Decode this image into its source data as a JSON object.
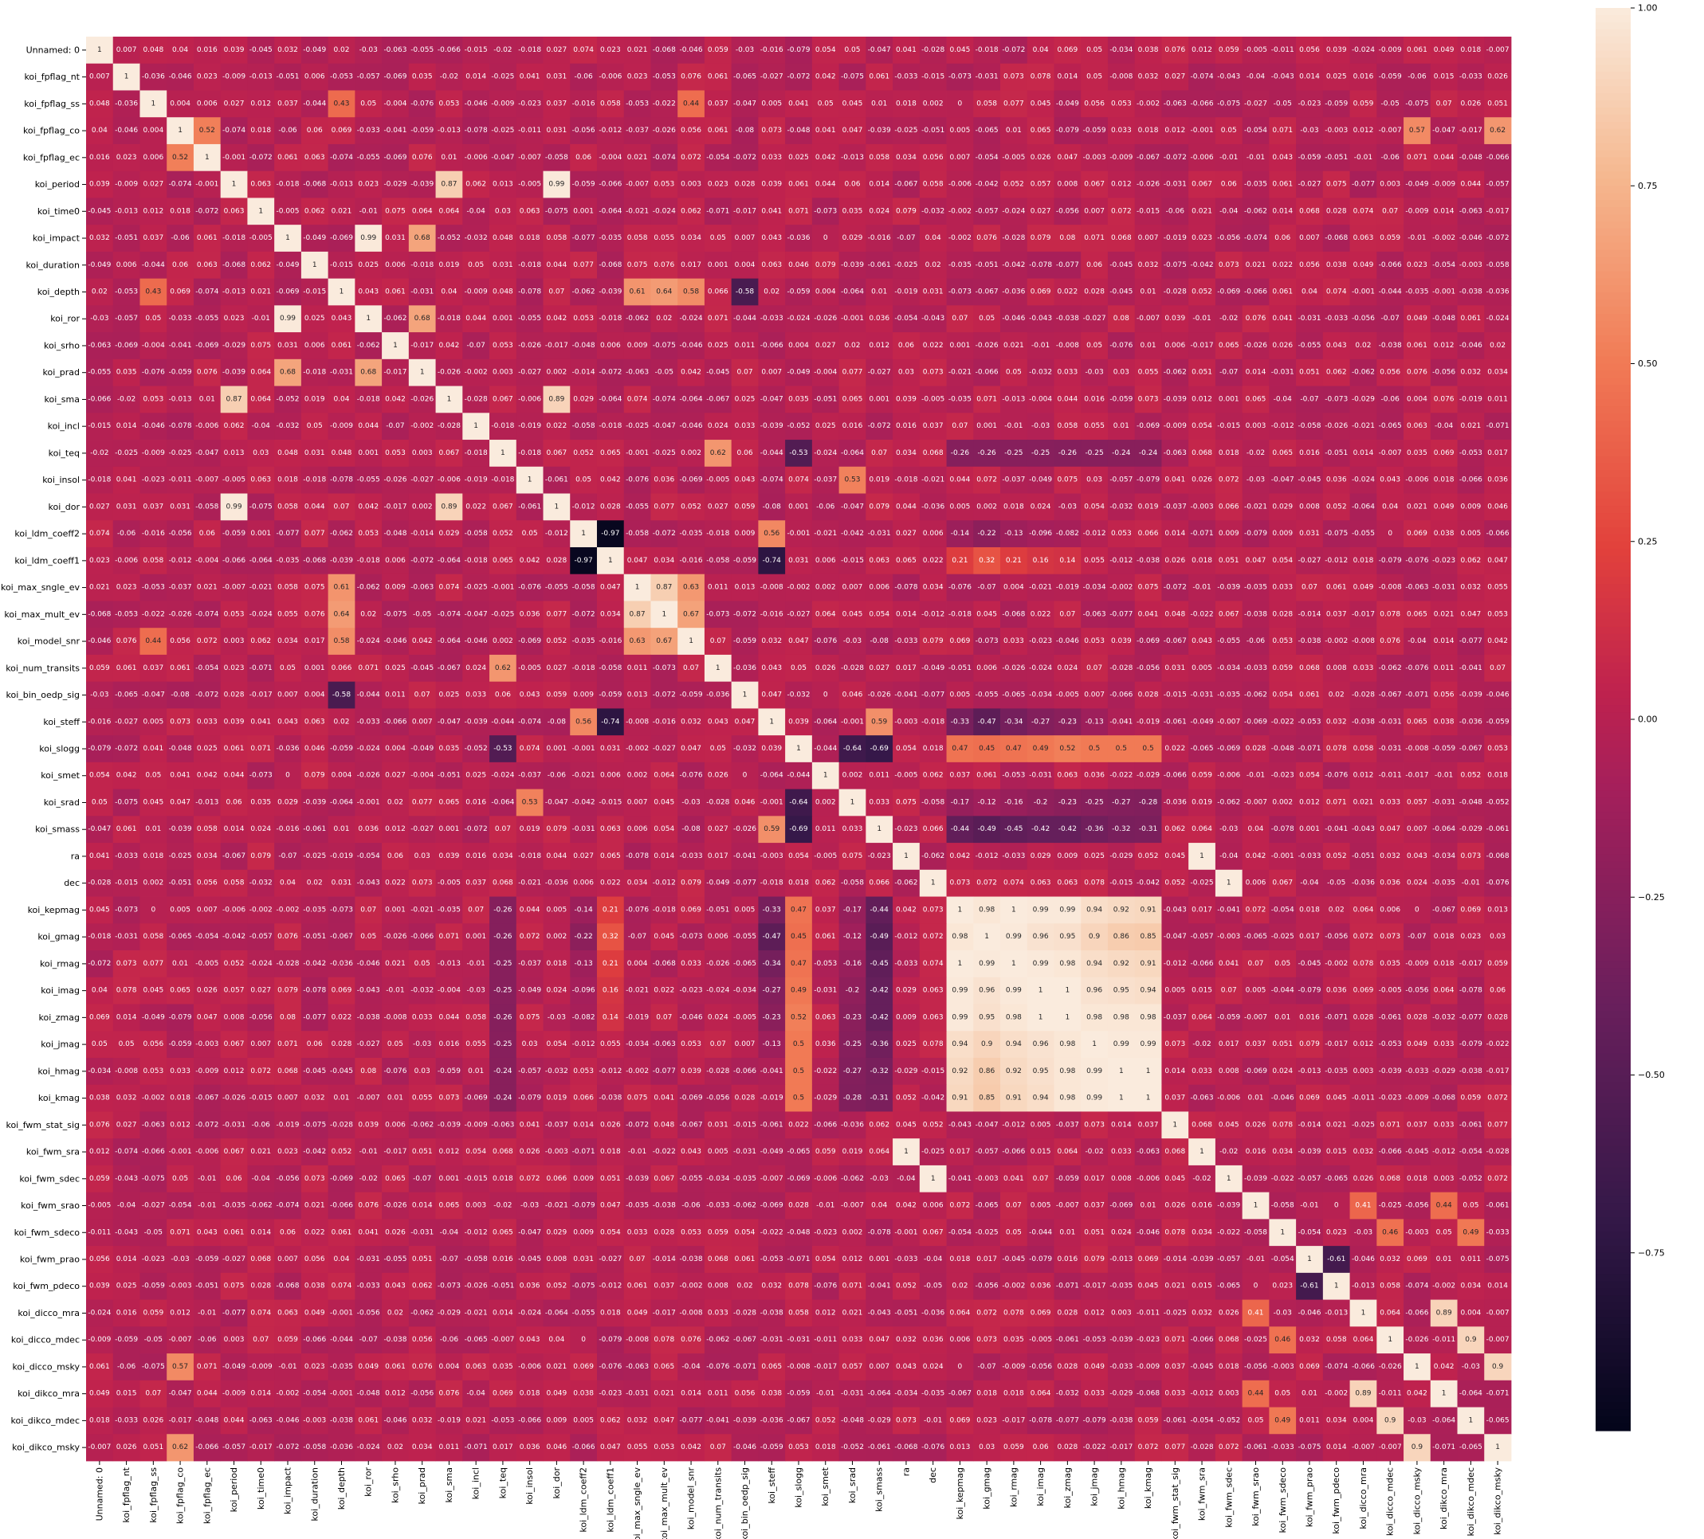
{
  "chart_data": {
    "type": "heatmap",
    "title": "",
    "xlabel": "",
    "ylabel": "",
    "colormap": "rocket",
    "vmin": -1,
    "vmax": 1,
    "colorbar": {
      "ticks": [
        1.0,
        0.75,
        0.5,
        0.25,
        0.0,
        -0.25,
        -0.5,
        -0.75
      ],
      "tick_labels": [
        "1.00",
        "0.75",
        "0.50",
        "0.25",
        "0.00",
        "−0.25",
        "−0.50",
        "−0.75"
      ]
    },
    "labels": [
      "Unnamed: 0",
      "koi_fpflag_nt",
      "koi_fpflag_ss",
      "koi_fpflag_co",
      "koi_fpflag_ec",
      "koi_period",
      "koi_time0",
      "koi_impact",
      "koi_duration",
      "koi_depth",
      "koi_ror",
      "koi_srho",
      "koi_prad",
      "koi_sma",
      "koi_incl",
      "koi_teq",
      "koi_insol",
      "koi_dor",
      "koi_ldm_coeff2",
      "koi_ldm_coeff1",
      "koi_max_sngle_ev",
      "koi_max_mult_ev",
      "koi_model_snr",
      "koi_num_transits",
      "koi_bin_oedp_sig",
      "koi_steff",
      "koi_slogg",
      "koi_smet",
      "koi_srad",
      "koi_smass",
      "ra",
      "dec",
      "koi_kepmag",
      "koi_gmag",
      "koi_rmag",
      "koi_imag",
      "koi_zmag",
      "koi_jmag",
      "koi_hmag",
      "koi_kmag",
      "koi_fwm_stat_sig",
      "koi_fwm_sra",
      "koi_fwm_sdec",
      "koi_fwm_srao",
      "koi_fwm_sdeco",
      "koi_fwm_prao",
      "koi_fwm_pdeco",
      "koi_dicco_mra",
      "koi_dicco_mdec",
      "koi_dicco_msky",
      "koi_dikco_mra",
      "koi_dikco_mdec",
      "koi_dikco_msky"
    ],
    "highlighted_correlations": [
      {
        "a": "koi_period",
        "b": "koi_dor",
        "value": 0.99
      },
      {
        "a": "koi_period",
        "b": "koi_sma",
        "value": 0.87
      },
      {
        "a": "koi_sma",
        "b": "koi_dor",
        "value": 0.89
      },
      {
        "a": "koi_impact",
        "b": "koi_ror",
        "value": 0.99
      },
      {
        "a": "koi_impact",
        "b": "koi_prad",
        "value": 0.68
      },
      {
        "a": "koi_ror",
        "b": "koi_prad",
        "value": 0.68
      },
      {
        "a": "koi_fpflag_co",
        "b": "koi_fpflag_ec",
        "value": 0.52
      },
      {
        "a": "koi_fpflag_co",
        "b": "koi_dicco_msky",
        "value": 0.57
      },
      {
        "a": "koi_fpflag_co",
        "b": "koi_dikco_msky",
        "value": 0.62
      },
      {
        "a": "koi_fpflag_ss",
        "b": "koi_depth",
        "value": 0.43
      },
      {
        "a": "koi_fpflag_ss",
        "b": "koi_model_snr",
        "value": 0.44
      },
      {
        "a": "koi_depth",
        "b": "koi_max_sngle_ev",
        "value": 0.61
      },
      {
        "a": "koi_depth",
        "b": "koi_max_mult_ev",
        "value": 0.64
      },
      {
        "a": "koi_depth",
        "b": "koi_model_snr",
        "value": 0.58
      },
      {
        "a": "koi_depth",
        "b": "koi_bin_oedp_sig",
        "value": -0.58
      },
      {
        "a": "koi_max_sngle_ev",
        "b": "koi_max_mult_ev",
        "value": 0.87
      },
      {
        "a": "koi_max_sngle_ev",
        "b": "koi_model_snr",
        "value": 0.63
      },
      {
        "a": "koi_max_mult_ev",
        "b": "koi_model_snr",
        "value": 0.67
      },
      {
        "a": "koi_teq",
        "b": "koi_num_transits",
        "value": 0.62
      },
      {
        "a": "koi_teq",
        "b": "koi_slogg",
        "value": -0.53
      },
      {
        "a": "koi_insol",
        "b": "koi_srad",
        "value": 0.53
      },
      {
        "a": "koi_ldm_coeff2",
        "b": "koi_ldm_coeff1",
        "value": -0.97
      },
      {
        "a": "koi_ldm_coeff2",
        "b": "koi_steff",
        "value": 0.56
      },
      {
        "a": "koi_ldm_coeff1",
        "b": "koi_steff",
        "value": -0.74
      },
      {
        "a": "koi_steff",
        "b": "koi_smass",
        "value": 0.59
      },
      {
        "a": "koi_slogg",
        "b": "koi_srad",
        "value": -0.64
      },
      {
        "a": "koi_slogg",
        "b": "koi_smass",
        "value": -0.69
      },
      {
        "a": "ra",
        "b": "koi_fwm_sra",
        "value": 1
      },
      {
        "a": "dec",
        "b": "koi_fwm_sdec",
        "value": 1
      },
      {
        "a": "koi_fwm_srao",
        "b": "koi_dicco_mra",
        "value": 0.41
      },
      {
        "a": "koi_fwm_srao",
        "b": "koi_dikco_mra",
        "value": 0.44
      },
      {
        "a": "koi_fwm_sdeco",
        "b": "koi_dicco_mdec",
        "value": 0.46
      },
      {
        "a": "koi_fwm_sdeco",
        "b": "koi_dikco_mdec",
        "value": 0.49
      },
      {
        "a": "koi_fwm_prao",
        "b": "koi_fwm_pdeco",
        "value": -0.61
      },
      {
        "a": "koi_dicco_mra",
        "b": "koi_dikco_mra",
        "value": 0.89
      },
      {
        "a": "koi_dicco_mdec",
        "b": "koi_dikco_mdec",
        "value": 0.9
      },
      {
        "a": "koi_dicco_msky",
        "b": "koi_dikco_msky",
        "value": 0.9
      }
    ],
    "magnitude_block": {
      "labels": [
        "koi_kepmag",
        "koi_gmag",
        "koi_rmag",
        "koi_imag",
        "koi_zmag",
        "koi_jmag",
        "koi_hmag",
        "koi_kmag"
      ],
      "matrix": [
        [
          1,
          0.98,
          1,
          0.99,
          0.99,
          0.94,
          0.92,
          0.91
        ],
        [
          0.98,
          1,
          0.99,
          0.96,
          0.95,
          0.9,
          0.86,
          0.85
        ],
        [
          1,
          0.99,
          1,
          0.99,
          0.98,
          0.94,
          0.92,
          0.91
        ],
        [
          0.99,
          0.96,
          0.99,
          1,
          1,
          0.96,
          0.95,
          0.94
        ],
        [
          0.99,
          0.95,
          0.98,
          1,
          1,
          0.98,
          0.98,
          0.98
        ],
        [
          0.94,
          0.9,
          0.94,
          0.96,
          0.98,
          1,
          0.99,
          0.99
        ],
        [
          0.92,
          0.86,
          0.92,
          0.95,
          0.98,
          0.99,
          1,
          1
        ],
        [
          0.91,
          0.85,
          0.91,
          0.94,
          0.98,
          0.99,
          1,
          1
        ]
      ]
    },
    "magnitude_cross": {
      "koi_teq": [
        -0.26,
        -0.26,
        -0.25,
        -0.25,
        -0.26,
        -0.25,
        -0.24,
        -0.24
      ],
      "koi_slogg": [
        0.47,
        0.45,
        0.47,
        0.49,
        0.52,
        0.5,
        0.5,
        0.5
      ],
      "koi_steff": [
        -0.33,
        -0.47,
        -0.34,
        -0.27,
        -0.23,
        -0.13,
        -0.041,
        -0.019
      ],
      "koi_smass": [
        -0.44,
        -0.49,
        -0.45,
        -0.42,
        -0.42,
        -0.36,
        -0.32,
        -0.31
      ],
      "koi_srad": [
        -0.17,
        -0.12,
        -0.16,
        -0.2,
        -0.23,
        -0.25,
        -0.27,
        -0.28
      ],
      "koi_ldm_coeff1": [
        0.21,
        0.32,
        0.21,
        0.16,
        0.14,
        0.055,
        -0.012,
        -0.038
      ],
      "koi_ldm_coeff2": [
        -0.14,
        -0.22,
        -0.13,
        -0.096,
        -0.082,
        -0.012,
        0.053,
        0.066
      ]
    }
  }
}
